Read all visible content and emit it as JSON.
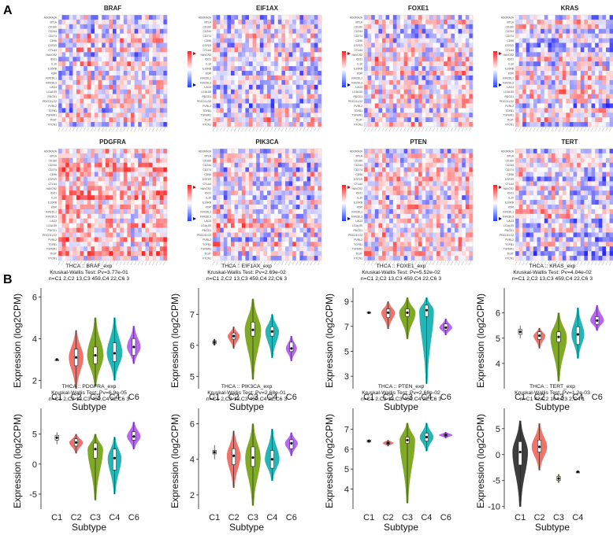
{
  "panel_labels": [
    "A",
    "B"
  ],
  "colors": {
    "heat_low": "#2040ff",
    "heat_mid": "#ffffff",
    "heat_high": "#ff2020",
    "C1": "#333333",
    "C2": "#f26b63",
    "C3": "#7aa61a",
    "C4": "#19b3b3",
    "C6": "#b460f2"
  },
  "chart_data": [
    {
      "type": "heatmap",
      "panel": "A",
      "row_labels": [
        "ADORA2A",
        "BTLA",
        "CD160",
        "CD244",
        "CD274",
        "CD96",
        "CSF1R",
        "CTLA4",
        "HAVCR2",
        "IDO1",
        "IL10",
        "IL10RB",
        "KDR",
        "KIR2DL1",
        "KIR2DL3",
        "LAG3",
        "LGALS9",
        "PDCD1",
        "PDCD1LG2",
        "PVRL2",
        "TGFB1",
        "TGFBR1",
        "TIGIT",
        "VTCN1"
      ],
      "heatmaps": [
        {
          "title": "BRAF",
          "n_cols": 30,
          "seed": 11,
          "bias": 0.0
        },
        {
          "title": "EIF1AX",
          "n_cols": 30,
          "seed": 23,
          "bias": -0.05
        },
        {
          "title": "FOXE1",
          "n_cols": 30,
          "seed": 37,
          "bias": 0.05
        },
        {
          "title": "KRAS",
          "n_cols": 30,
          "seed": 41,
          "bias": -0.1
        },
        {
          "title": "PDGFRA",
          "n_cols": 30,
          "seed": 53,
          "bias": 0.35
        },
        {
          "title": "PIK3CA",
          "n_cols": 30,
          "seed": 67,
          "bias": 0.05
        },
        {
          "title": "PTEN",
          "n_cols": 30,
          "seed": 71,
          "bias": 0.05
        },
        {
          "title": "TERT",
          "n_cols": 30,
          "seed": 83,
          "bias": -0.1
        }
      ]
    },
    {
      "type": "violin",
      "panel": "B",
      "xlabel": "Subtype",
      "ylabel": "Expression (log2CPM)",
      "plots": [
        {
          "title": "THCA :: BRAF_exp",
          "subtitle": "Kruskal-Wallis Test: Pv=3.77e-01",
          "n_text": "n=C1 2,C2 13,C3 459,C4 22,C6 3",
          "ylim": [
            1.6,
            6.2
          ],
          "yticks": [
            2,
            4,
            6
          ],
          "groups": [
            {
              "name": "C1",
              "median": 3.0,
              "q1": 3.0,
              "q3": 3.0,
              "min": 2.95,
              "max": 3.05,
              "width": 0.05
            },
            {
              "name": "C2",
              "median": 3.1,
              "q1": 2.7,
              "q3": 3.5,
              "min": 1.6,
              "max": 4.4,
              "width": 0.75
            },
            {
              "name": "C3",
              "median": 3.2,
              "q1": 2.8,
              "q3": 3.6,
              "min": 1.7,
              "max": 5.0,
              "width": 0.85
            },
            {
              "name": "C4",
              "median": 3.3,
              "q1": 2.9,
              "q3": 3.8,
              "min": 2.0,
              "max": 5.0,
              "width": 0.8
            },
            {
              "name": "C6",
              "median": 3.6,
              "q1": 3.2,
              "q3": 4.0,
              "min": 2.8,
              "max": 4.6,
              "width": 0.7
            }
          ]
        },
        {
          "title": "THCA :: EIF1AX_exp",
          "subtitle": "Kruskal-Wallis Test: Pv=2.69e-02",
          "n_text": "n=C1 2,C2 13,C3 459,C4 22,C6 3",
          "ylim": [
            4.6,
            7.7
          ],
          "yticks": [
            5,
            6,
            7
          ],
          "groups": [
            {
              "name": "C1",
              "median": 6.1,
              "q1": 6.05,
              "q3": 6.15,
              "min": 6.0,
              "max": 6.2,
              "width": 0.1
            },
            {
              "name": "C2",
              "median": 6.3,
              "q1": 6.2,
              "q3": 6.4,
              "min": 5.9,
              "max": 6.6,
              "width": 0.6
            },
            {
              "name": "C3",
              "median": 6.5,
              "q1": 6.3,
              "q3": 6.75,
              "min": 4.9,
              "max": 7.5,
              "width": 0.85
            },
            {
              "name": "C4",
              "median": 6.45,
              "q1": 6.3,
              "q3": 6.6,
              "min": 5.6,
              "max": 7.0,
              "width": 0.7
            },
            {
              "name": "C6",
              "median": 5.9,
              "q1": 5.8,
              "q3": 6.1,
              "min": 5.5,
              "max": 6.3,
              "width": 0.55
            }
          ]
        },
        {
          "title": "THCA :: FOXE1_exp",
          "subtitle": "Kruskal-Wallis Test: Pv=5.52e-02",
          "n_text": "n=C1 2,C2 13,C3 459,C4 22,C6 3",
          "ylim": [
            2.0,
            9.7
          ],
          "yticks": [
            3,
            5,
            7,
            9
          ],
          "groups": [
            {
              "name": "C1",
              "median": 8.1,
              "q1": 8.05,
              "q3": 8.15,
              "min": 8.0,
              "max": 8.2,
              "width": 0.05
            },
            {
              "name": "C2",
              "median": 8.1,
              "q1": 7.7,
              "q3": 8.4,
              "min": 6.8,
              "max": 9.0,
              "width": 0.7
            },
            {
              "name": "C3",
              "median": 8.1,
              "q1": 7.8,
              "q3": 8.4,
              "min": 6.0,
              "max": 9.3,
              "width": 0.85
            },
            {
              "name": "C4",
              "median": 8.3,
              "q1": 7.8,
              "q3": 8.7,
              "min": 2.4,
              "max": 9.3,
              "width": 0.75
            },
            {
              "name": "C6",
              "median": 6.9,
              "q1": 6.7,
              "q3": 7.2,
              "min": 6.3,
              "max": 7.6,
              "width": 0.65
            }
          ]
        },
        {
          "title": "THCA :: KRAS_exp",
          "subtitle": "Kruskal-Wallis Test: Pv=4.04e-02",
          "n_text": "n=C1 2,C2 13,C3 459,C4 22,C6 3",
          "ylim": [
            3.0,
            6.8
          ],
          "yticks": [
            4,
            5,
            6
          ],
          "groups": [
            {
              "name": "C1",
              "median": 5.25,
              "q1": 5.15,
              "q3": 5.35,
              "min": 5.0,
              "max": 5.5,
              "width": 0.05
            },
            {
              "name": "C2",
              "median": 5.1,
              "q1": 4.95,
              "q3": 5.25,
              "min": 4.6,
              "max": 5.4,
              "width": 0.6
            },
            {
              "name": "C3",
              "median": 5.05,
              "q1": 4.85,
              "q3": 5.25,
              "min": 3.3,
              "max": 6.0,
              "width": 0.85
            },
            {
              "name": "C4",
              "median": 5.15,
              "q1": 4.75,
              "q3": 5.45,
              "min": 4.2,
              "max": 6.2,
              "width": 0.65
            },
            {
              "name": "C6",
              "median": 5.7,
              "q1": 5.55,
              "q3": 5.85,
              "min": 5.3,
              "max": 6.3,
              "width": 0.7
            }
          ]
        },
        {
          "title": "THCA :: PDGFRA_exp",
          "subtitle": "Kruskal-Wallis Test: Pv=6.9e-05",
          "n_text": "n=C1 2,C2 13,C3 459,C4 22,C6 3",
          "ylim": [
            -7.5,
            8.5
          ],
          "yticks": [
            -5,
            0,
            5
          ],
          "groups": [
            {
              "name": "C1",
              "median": 4.4,
              "q1": 4.0,
              "q3": 4.8,
              "min": 3.3,
              "max": 5.3,
              "width": 0.05
            },
            {
              "name": "C2",
              "median": 3.6,
              "q1": 3.0,
              "q3": 4.2,
              "min": 1.8,
              "max": 5.0,
              "width": 0.7
            },
            {
              "name": "C3",
              "median": 2.5,
              "q1": 1.0,
              "q3": 3.5,
              "min": -6.0,
              "max": 5.0,
              "width": 0.8
            },
            {
              "name": "C4",
              "median": 1.0,
              "q1": -1.0,
              "q3": 2.5,
              "min": -5.0,
              "max": 4.5,
              "width": 0.7
            },
            {
              "name": "C6",
              "median": 4.6,
              "q1": 4.0,
              "q3": 5.4,
              "min": 2.5,
              "max": 7.0,
              "width": 0.7
            }
          ]
        },
        {
          "title": "THCA :: PIK3CA_exp",
          "subtitle": "Kruskal-Wallis Test: Pv=2.68e-01",
          "n_text": "n=C1 2,C2 13,C3 459,C4 22,C6 3",
          "ylim": [
            1.2,
            6.6
          ],
          "yticks": [
            2,
            4,
            6
          ],
          "groups": [
            {
              "name": "C1",
              "median": 4.4,
              "q1": 4.3,
              "q3": 4.5,
              "min": 4.0,
              "max": 4.8,
              "width": 0.05
            },
            {
              "name": "C2",
              "median": 4.2,
              "q1": 3.7,
              "q3": 4.6,
              "min": 2.4,
              "max": 5.6,
              "width": 0.7
            },
            {
              "name": "C3",
              "median": 4.1,
              "q1": 3.6,
              "q3": 4.7,
              "min": 1.4,
              "max": 6.0,
              "width": 0.8
            },
            {
              "name": "C4",
              "median": 4.0,
              "q1": 3.5,
              "q3": 4.5,
              "min": 2.8,
              "max": 5.7,
              "width": 0.75
            },
            {
              "name": "C6",
              "median": 4.9,
              "q1": 4.6,
              "q3": 5.1,
              "min": 4.2,
              "max": 5.5,
              "width": 0.65
            }
          ]
        },
        {
          "title": "THCA :: PTEN_exp",
          "subtitle": "Kruskal-Wallis Test: Pv=2.68e-02",
          "n_text": "n=C1 2,C2 13,C3 459,C4 22,C6 3",
          "ylim": [
            3.0,
            7.8
          ],
          "yticks": [
            4,
            5,
            6,
            7
          ],
          "groups": [
            {
              "name": "C1",
              "median": 6.4,
              "q1": 6.35,
              "q3": 6.45,
              "min": 6.3,
              "max": 6.5,
              "width": 0.05
            },
            {
              "name": "C2",
              "median": 6.3,
              "q1": 6.25,
              "q3": 6.35,
              "min": 6.15,
              "max": 6.45,
              "width": 0.55
            },
            {
              "name": "C3",
              "median": 6.45,
              "q1": 6.3,
              "q3": 6.6,
              "min": 3.3,
              "max": 7.3,
              "width": 0.8
            },
            {
              "name": "C4",
              "median": 6.6,
              "q1": 6.4,
              "q3": 6.8,
              "min": 5.9,
              "max": 7.3,
              "width": 0.7
            },
            {
              "name": "C6",
              "median": 6.7,
              "q1": 6.65,
              "q3": 6.75,
              "min": 6.55,
              "max": 6.85,
              "width": 0.7
            }
          ]
        },
        {
          "title": "THCA :: TERT_exp",
          "subtitle": "Kruskal-Wallis Test: Pv=1.2e-03",
          "n_text": "n=C1 42,C2 104,C3 2,C4 1",
          "ylim": [
            -10.5,
            8.0
          ],
          "yticks": [
            -10,
            -5,
            0,
            5
          ],
          "groups": [
            {
              "name": "C1",
              "median": 0.5,
              "q1": -2.0,
              "q3": 2.5,
              "min": -10.0,
              "max": 6.5,
              "width": 0.8
            },
            {
              "name": "C2",
              "median": 1.5,
              "q1": 0.5,
              "q3": 2.8,
              "min": -3.0,
              "max": 6.0,
              "width": 0.8
            },
            {
              "name": "C3",
              "median": -4.6,
              "q1": -5.0,
              "q3": -4.2,
              "min": -5.4,
              "max": -3.8,
              "width": 0.12
            },
            {
              "name": "C4",
              "median": -3.3,
              "q1": -3.3,
              "q3": -3.3,
              "min": -3.3,
              "max": -3.3,
              "width": 0.08
            }
          ]
        }
      ]
    }
  ]
}
